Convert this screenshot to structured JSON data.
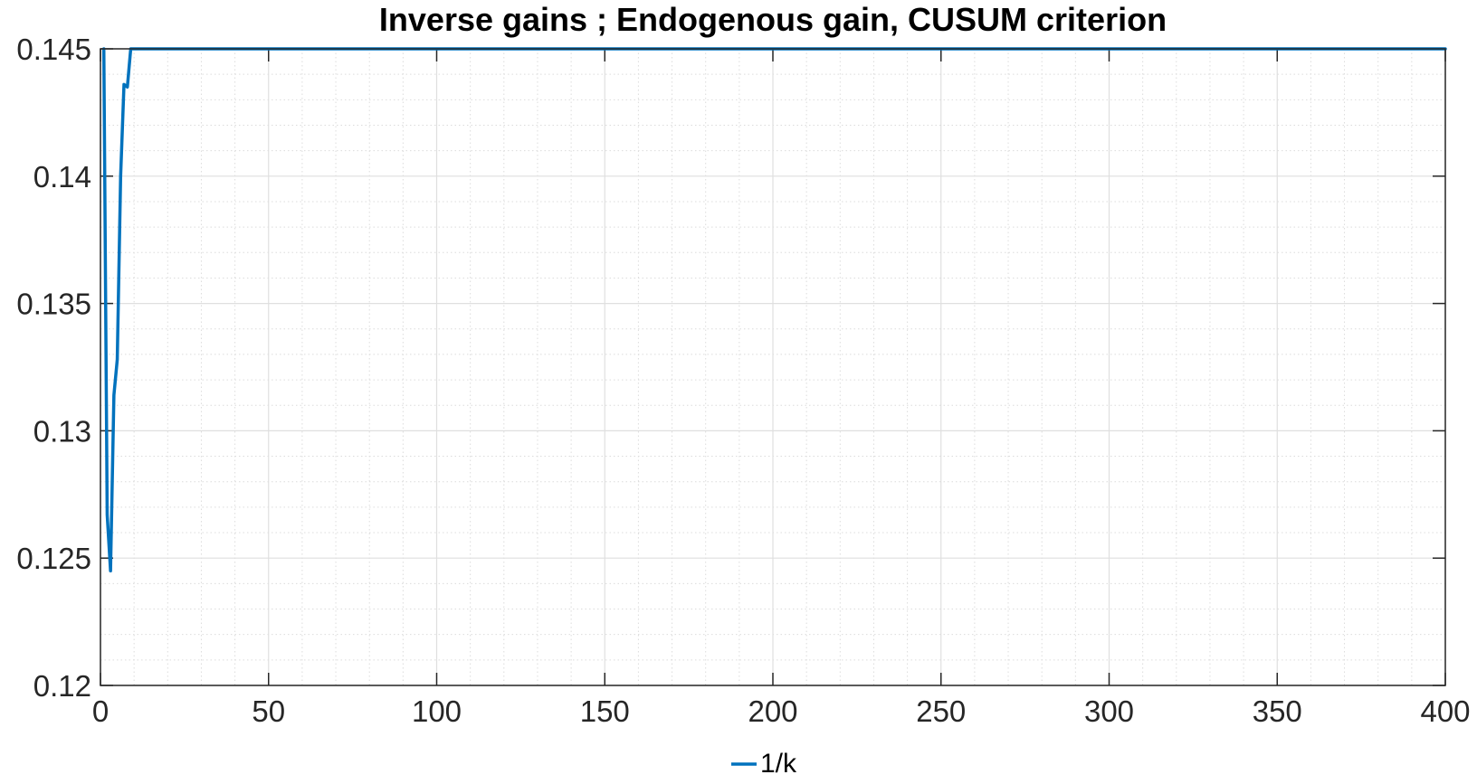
{
  "chart_data": {
    "type": "line",
    "title": "Inverse gains ; Endogenous gain, CUSUM criterion",
    "xlabel": "",
    "ylabel": "",
    "xlim": [
      0,
      400
    ],
    "ylim": [
      0.12,
      0.145
    ],
    "x_ticks": [
      0,
      50,
      100,
      150,
      200,
      250,
      300,
      350,
      400
    ],
    "x_tick_labels": [
      "0",
      "50",
      "100",
      "150",
      "200",
      "250",
      "300",
      "350",
      "400"
    ],
    "y_ticks": [
      0.12,
      0.125,
      0.13,
      0.135,
      0.14,
      0.145
    ],
    "y_tick_labels": [
      "0.12",
      "0.125",
      "0.13",
      "0.135",
      "0.14",
      "0.145"
    ],
    "grid": true,
    "minor_grid": true,
    "legend_position": "bottom-center",
    "series": [
      {
        "name": "1/k",
        "color": "#0072BD",
        "x": [
          1,
          2,
          3,
          4,
          5,
          6,
          7,
          8,
          9,
          10,
          400
        ],
        "y": [
          0.145,
          0.1267,
          0.1245,
          0.1314,
          0.1328,
          0.14,
          0.1436,
          0.1435,
          0.145,
          0.145,
          0.145
        ]
      }
    ]
  }
}
